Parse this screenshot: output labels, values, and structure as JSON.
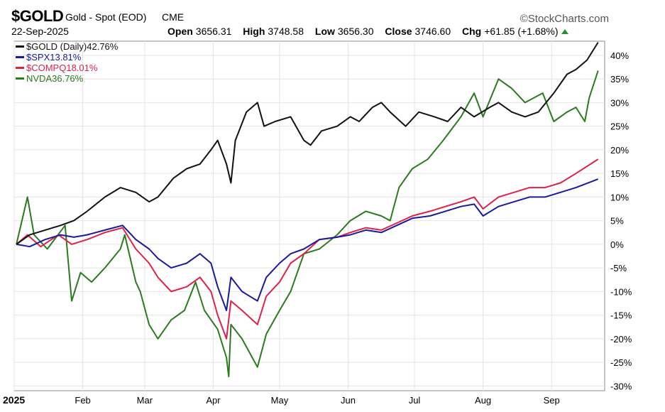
{
  "header": {
    "symbol": "$GOLD",
    "name": "Gold - Spot (EOD)",
    "exchange": "CME",
    "brand": "©StockCharts.com",
    "date": "22-Sep-2025",
    "ohlc": [
      {
        "label": "Open",
        "value": "3656.31"
      },
      {
        "label": "High",
        "value": "3748.58"
      },
      {
        "label": "Low",
        "value": "3656.30"
      },
      {
        "label": "Close",
        "value": "3746.60"
      },
      {
        "label": "Chg",
        "value": "+61.85 (+1.68%)"
      }
    ]
  },
  "colors": {
    "gold": "#111111",
    "spx": "#1a1a9c",
    "compq": "#e0204a",
    "nvda": "#2a7a1e"
  },
  "chart_data": {
    "type": "line",
    "y_unit": "%",
    "ylim": [
      -31,
      43
    ],
    "y_ticks": [
      40,
      35,
      30,
      25,
      20,
      15,
      10,
      5,
      0,
      -5,
      -10,
      -15,
      -20,
      -25,
      -30
    ],
    "x_ticks": [
      {
        "label": "2025",
        "date": "2025-01-01",
        "bold": true
      },
      {
        "label": "Feb",
        "date": "2025-02-01"
      },
      {
        "label": "Mar",
        "date": "2025-03-01"
      },
      {
        "label": "Apr",
        "date": "2025-04-01"
      },
      {
        "label": "May",
        "date": "2025-05-01"
      },
      {
        "label": "Jun",
        "date": "2025-06-01"
      },
      {
        "label": "Jul",
        "date": "2025-07-01"
      },
      {
        "label": "Aug",
        "date": "2025-08-01"
      },
      {
        "label": "Sep",
        "date": "2025-09-01"
      }
    ],
    "grid": true,
    "legend_position": "top-left",
    "series": [
      {
        "key": "gold",
        "name": "$GOLD (Daily)",
        "last": "42.76%",
        "points": [
          [
            "2025-01-02",
            0
          ],
          [
            "2025-01-08",
            2
          ],
          [
            "2025-01-15",
            3
          ],
          [
            "2025-01-22",
            4
          ],
          [
            "2025-01-28",
            5
          ],
          [
            "2025-02-03",
            7
          ],
          [
            "2025-02-11",
            10
          ],
          [
            "2025-02-18",
            12
          ],
          [
            "2025-02-25",
            11
          ],
          [
            "2025-03-03",
            9
          ],
          [
            "2025-03-07",
            10
          ],
          [
            "2025-03-14",
            14
          ],
          [
            "2025-03-20",
            16
          ],
          [
            "2025-03-26",
            17
          ],
          [
            "2025-03-31",
            20
          ],
          [
            "2025-04-03",
            22
          ],
          [
            "2025-04-07",
            17
          ],
          [
            "2025-04-09",
            13
          ],
          [
            "2025-04-11",
            22
          ],
          [
            "2025-04-16",
            28
          ],
          [
            "2025-04-21",
            30
          ],
          [
            "2025-04-24",
            25
          ],
          [
            "2025-04-29",
            26
          ],
          [
            "2025-05-06",
            27
          ],
          [
            "2025-05-12",
            22
          ],
          [
            "2025-05-15",
            21
          ],
          [
            "2025-05-20",
            24
          ],
          [
            "2025-05-27",
            25
          ],
          [
            "2025-06-02",
            27
          ],
          [
            "2025-06-06",
            26
          ],
          [
            "2025-06-12",
            29
          ],
          [
            "2025-06-16",
            30
          ],
          [
            "2025-06-20",
            28
          ],
          [
            "2025-06-27",
            25
          ],
          [
            "2025-07-03",
            28
          ],
          [
            "2025-07-10",
            27
          ],
          [
            "2025-07-16",
            26
          ],
          [
            "2025-07-22",
            29
          ],
          [
            "2025-07-28",
            27
          ],
          [
            "2025-08-04",
            29
          ],
          [
            "2025-08-08",
            30
          ],
          [
            "2025-08-14",
            28
          ],
          [
            "2025-08-20",
            27
          ],
          [
            "2025-08-26",
            28
          ],
          [
            "2025-09-02",
            32
          ],
          [
            "2025-09-08",
            36
          ],
          [
            "2025-09-12",
            37
          ],
          [
            "2025-09-17",
            39
          ],
          [
            "2025-09-22",
            42.76
          ]
        ]
      },
      {
        "key": "spx",
        "name": "$SPX",
        "last": "13.81%",
        "points": [
          [
            "2025-01-02",
            0
          ],
          [
            "2025-01-08",
            -0.5
          ],
          [
            "2025-01-15",
            1
          ],
          [
            "2025-01-22",
            2
          ],
          [
            "2025-01-28",
            1.5
          ],
          [
            "2025-02-03",
            2
          ],
          [
            "2025-02-11",
            3
          ],
          [
            "2025-02-19",
            4
          ],
          [
            "2025-02-25",
            1
          ],
          [
            "2025-03-03",
            -1
          ],
          [
            "2025-03-07",
            -3
          ],
          [
            "2025-03-13",
            -5
          ],
          [
            "2025-03-20",
            -4
          ],
          [
            "2025-03-26",
            -2
          ],
          [
            "2025-03-31",
            -4
          ],
          [
            "2025-04-03",
            -9
          ],
          [
            "2025-04-07",
            -14
          ],
          [
            "2025-04-09",
            -7
          ],
          [
            "2025-04-14",
            -10
          ],
          [
            "2025-04-21",
            -12
          ],
          [
            "2025-04-25",
            -7
          ],
          [
            "2025-05-01",
            -4
          ],
          [
            "2025-05-06",
            -2
          ],
          [
            "2025-05-12",
            -1
          ],
          [
            "2025-05-19",
            1
          ],
          [
            "2025-05-27",
            1.5
          ],
          [
            "2025-06-02",
            2
          ],
          [
            "2025-06-09",
            3
          ],
          [
            "2025-06-16",
            2.5
          ],
          [
            "2025-06-23",
            4
          ],
          [
            "2025-06-30",
            5.5
          ],
          [
            "2025-07-08",
            6
          ],
          [
            "2025-07-15",
            7
          ],
          [
            "2025-07-22",
            8
          ],
          [
            "2025-07-28",
            8.5
          ],
          [
            "2025-08-01",
            6
          ],
          [
            "2025-08-08",
            8
          ],
          [
            "2025-08-15",
            9
          ],
          [
            "2025-08-22",
            10
          ],
          [
            "2025-08-29",
            10
          ],
          [
            "2025-09-05",
            11
          ],
          [
            "2025-09-12",
            12
          ],
          [
            "2025-09-22",
            13.81
          ]
        ]
      },
      {
        "key": "compq",
        "name": "$COMPQ",
        "last": "18.01%",
        "points": [
          [
            "2025-01-02",
            0
          ],
          [
            "2025-01-07",
            2
          ],
          [
            "2025-01-13",
            -0.5
          ],
          [
            "2025-01-21",
            2
          ],
          [
            "2025-01-27",
            0
          ],
          [
            "2025-02-03",
            1
          ],
          [
            "2025-02-11",
            2.5
          ],
          [
            "2025-02-19",
            3.5
          ],
          [
            "2025-02-25",
            -1
          ],
          [
            "2025-03-03",
            -4
          ],
          [
            "2025-03-07",
            -7
          ],
          [
            "2025-03-13",
            -10
          ],
          [
            "2025-03-20",
            -9
          ],
          [
            "2025-03-26",
            -7
          ],
          [
            "2025-03-31",
            -10
          ],
          [
            "2025-04-03",
            -15
          ],
          [
            "2025-04-07",
            -20
          ],
          [
            "2025-04-09",
            -12
          ],
          [
            "2025-04-14",
            -14
          ],
          [
            "2025-04-21",
            -17
          ],
          [
            "2025-04-25",
            -11
          ],
          [
            "2025-05-01",
            -8
          ],
          [
            "2025-05-06",
            -4
          ],
          [
            "2025-05-12",
            -2
          ],
          [
            "2025-05-19",
            1
          ],
          [
            "2025-05-27",
            1.5
          ],
          [
            "2025-06-02",
            2.5
          ],
          [
            "2025-06-09",
            3.5
          ],
          [
            "2025-06-16",
            3
          ],
          [
            "2025-06-23",
            4.5
          ],
          [
            "2025-06-30",
            6
          ],
          [
            "2025-07-08",
            7
          ],
          [
            "2025-07-15",
            8
          ],
          [
            "2025-07-22",
            9
          ],
          [
            "2025-07-28",
            10
          ],
          [
            "2025-08-01",
            7.5
          ],
          [
            "2025-08-08",
            10
          ],
          [
            "2025-08-15",
            11
          ],
          [
            "2025-08-22",
            12
          ],
          [
            "2025-08-29",
            12
          ],
          [
            "2025-09-05",
            13
          ],
          [
            "2025-09-12",
            15
          ],
          [
            "2025-09-22",
            18.01
          ]
        ]
      },
      {
        "key": "nvda",
        "name": "NVDA",
        "last": "36.76%",
        "points": [
          [
            "2025-01-02",
            0
          ],
          [
            "2025-01-07",
            10
          ],
          [
            "2025-01-10",
            2
          ],
          [
            "2025-01-16",
            -1
          ],
          [
            "2025-01-24",
            4
          ],
          [
            "2025-01-27",
            -12
          ],
          [
            "2025-01-31",
            -6
          ],
          [
            "2025-02-05",
            -8
          ],
          [
            "2025-02-11",
            -5
          ],
          [
            "2025-02-18",
            -1
          ],
          [
            "2025-02-20",
            2
          ],
          [
            "2025-02-25",
            -8
          ],
          [
            "2025-02-27",
            -10
          ],
          [
            "2025-03-03",
            -17
          ],
          [
            "2025-03-07",
            -20
          ],
          [
            "2025-03-13",
            -16
          ],
          [
            "2025-03-19",
            -14
          ],
          [
            "2025-03-24",
            -8
          ],
          [
            "2025-03-28",
            -14
          ],
          [
            "2025-04-03",
            -18
          ],
          [
            "2025-04-07",
            -24
          ],
          [
            "2025-04-08",
            -28
          ],
          [
            "2025-04-09",
            -17
          ],
          [
            "2025-04-14",
            -20
          ],
          [
            "2025-04-21",
            -26
          ],
          [
            "2025-04-25",
            -19
          ],
          [
            "2025-05-01",
            -14
          ],
          [
            "2025-05-06",
            -10
          ],
          [
            "2025-05-12",
            -2
          ],
          [
            "2025-05-19",
            -1
          ],
          [
            "2025-05-27",
            2
          ],
          [
            "2025-06-02",
            5
          ],
          [
            "2025-06-09",
            7
          ],
          [
            "2025-06-16",
            6
          ],
          [
            "2025-06-20",
            5
          ],
          [
            "2025-06-24",
            12
          ],
          [
            "2025-06-30",
            16
          ],
          [
            "2025-07-07",
            18
          ],
          [
            "2025-07-14",
            22
          ],
          [
            "2025-07-22",
            27
          ],
          [
            "2025-07-28",
            32
          ],
          [
            "2025-08-01",
            27
          ],
          [
            "2025-08-08",
            35
          ],
          [
            "2025-08-14",
            33
          ],
          [
            "2025-08-20",
            30
          ],
          [
            "2025-08-28",
            32
          ],
          [
            "2025-09-02",
            26
          ],
          [
            "2025-09-08",
            28
          ],
          [
            "2025-09-12",
            29
          ],
          [
            "2025-09-16",
            26
          ],
          [
            "2025-09-18",
            31
          ],
          [
            "2025-09-22",
            36.76
          ]
        ]
      }
    ]
  }
}
